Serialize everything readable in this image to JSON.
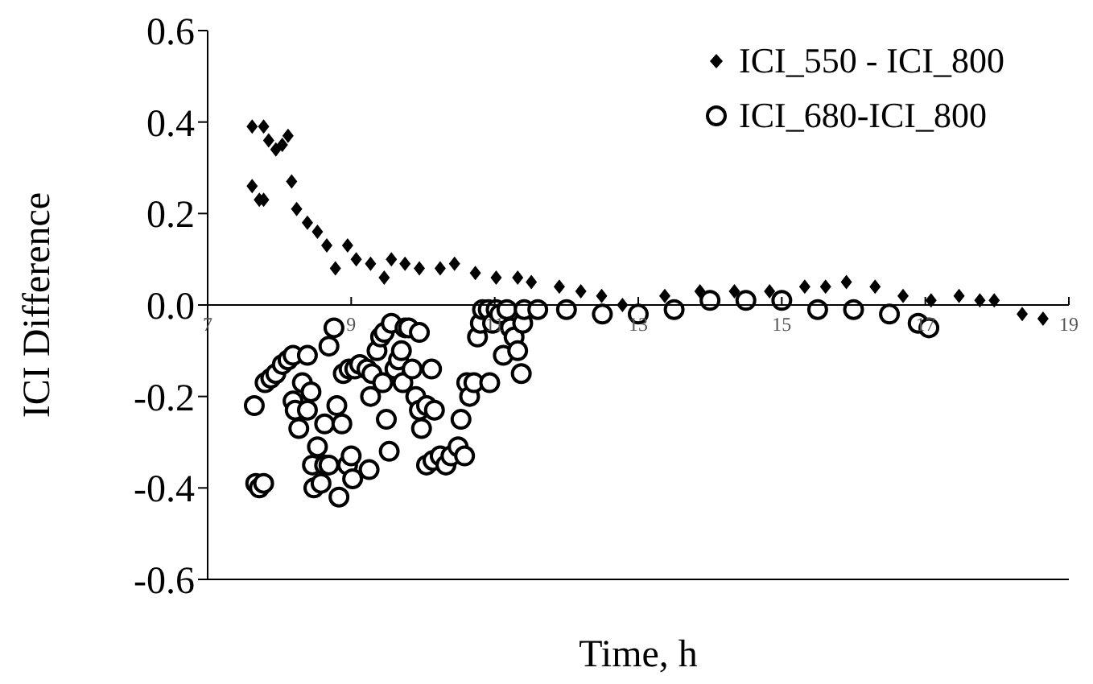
{
  "chart_data": {
    "type": "scatter",
    "xlabel": "Time, h",
    "ylabel": "ICI Difference",
    "xlim": [
      7,
      19
    ],
    "xticks": [
      7,
      9,
      11,
      13,
      15,
      17,
      19
    ],
    "ylim": [
      -0.6,
      0.6
    ],
    "yticks": [
      -0.6,
      -0.4,
      -0.2,
      {
        "value": 0,
        "label": "0.0"
      },
      0.2,
      0.4,
      0.6
    ],
    "legend": "top right",
    "series": [
      {
        "name": "ICI_550 - ICI_800",
        "color": "#000000",
        "marker": "diamond",
        "x": [
          7.62,
          7.78,
          7.85,
          7.95,
          8.04,
          8.12,
          7.62,
          7.72,
          7.78,
          8.17,
          8.24,
          8.39,
          8.53,
          8.66,
          8.78,
          8.95,
          9.07,
          9.27,
          9.46,
          9.56,
          9.75,
          9.95,
          10.24,
          10.44,
          10.73,
          11.02,
          11.32,
          11.51,
          11.9,
          12.2,
          12.49,
          12.78,
          13.37,
          13.86,
          14.34,
          14.83,
          15.32,
          15.61,
          15.9,
          16.3,
          16.69,
          17.08,
          17.47,
          17.76,
          17.96,
          18.35,
          18.64
        ],
        "values": [
          0.39,
          0.39,
          0.36,
          0.34,
          0.35,
          0.37,
          0.26,
          0.23,
          0.23,
          0.27,
          0.21,
          0.18,
          0.16,
          0.13,
          0.08,
          0.13,
          0.1,
          0.09,
          0.06,
          0.1,
          0.09,
          0.08,
          0.08,
          0.09,
          0.07,
          0.06,
          0.06,
          0.05,
          0.04,
          0.03,
          0.02,
          0.0,
          0.02,
          0.03,
          0.03,
          0.03,
          0.04,
          0.04,
          0.05,
          0.04,
          0.02,
          0.01,
          0.02,
          0.01,
          0.01,
          -0.02,
          -0.03
        ]
      },
      {
        "name": "ICI_680-ICI_800",
        "color": "#000000",
        "marker": "circle",
        "x": [
          7.65,
          7.67,
          7.72,
          7.78,
          7.8,
          7.88,
          7.95,
          8.04,
          8.12,
          8.19,
          8.39,
          8.19,
          8.22,
          8.27,
          8.32,
          8.39,
          8.44,
          8.53,
          8.46,
          8.48,
          8.58,
          8.63,
          8.69,
          8.63,
          8.76,
          8.69,
          8.8,
          8.83,
          8.87,
          8.89,
          8.97,
          8.95,
          9.0,
          9.02,
          9.05,
          9.12,
          9.22,
          9.27,
          9.29,
          9.25,
          9.36,
          9.41,
          9.44,
          9.49,
          9.53,
          9.46,
          9.56,
          9.61,
          9.66,
          9.7,
          9.72,
          9.75,
          9.8,
          9.85,
          9.9,
          9.95,
          9.95,
          9.98,
          10.05,
          10.05,
          10.12,
          10.16,
          10.14,
          10.24,
          10.32,
          10.39,
          10.49,
          10.53,
          10.58,
          10.61,
          10.65,
          10.71,
          10.76,
          10.8,
          10.83,
          10.91,
          10.93,
          10.97,
          11.02,
          11.07,
          11.12,
          11.17,
          11.22,
          11.27,
          11.32,
          11.37,
          11.39,
          11.41,
          11.6,
          12.0,
          12.5,
          13.0,
          13.5,
          14.0,
          14.5,
          15.0,
          15.5,
          16.0,
          16.5,
          16.9,
          17.05
        ],
        "values": [
          -0.22,
          -0.39,
          -0.4,
          -0.39,
          -0.17,
          -0.16,
          -0.15,
          -0.13,
          -0.12,
          -0.11,
          -0.11,
          -0.21,
          -0.23,
          -0.27,
          -0.17,
          -0.23,
          -0.19,
          -0.31,
          -0.35,
          -0.4,
          -0.39,
          -0.35,
          -0.35,
          -0.26,
          -0.05,
          -0.09,
          -0.22,
          -0.42,
          -0.26,
          -0.15,
          -0.14,
          -0.35,
          -0.33,
          -0.38,
          -0.14,
          -0.13,
          -0.14,
          -0.2,
          -0.15,
          -0.36,
          -0.1,
          -0.07,
          -0.17,
          -0.25,
          -0.32,
          -0.06,
          -0.04,
          -0.14,
          -0.12,
          -0.1,
          -0.17,
          -0.05,
          -0.05,
          -0.14,
          -0.2,
          -0.23,
          -0.06,
          -0.27,
          -0.22,
          -0.35,
          -0.14,
          -0.23,
          -0.34,
          -0.33,
          -0.35,
          -0.33,
          -0.31,
          -0.25,
          -0.33,
          -0.17,
          -0.2,
          -0.17,
          -0.07,
          -0.04,
          -0.01,
          -0.01,
          -0.17,
          -0.04,
          -0.01,
          -0.02,
          -0.11,
          -0.01,
          -0.05,
          -0.07,
          -0.1,
          -0.15,
          -0.04,
          -0.01,
          -0.01,
          -0.01,
          -0.02,
          -0.02,
          -0.01,
          0.01,
          0.01,
          0.01,
          -0.01,
          -0.01,
          -0.02,
          -0.04,
          -0.05
        ]
      }
    ]
  }
}
